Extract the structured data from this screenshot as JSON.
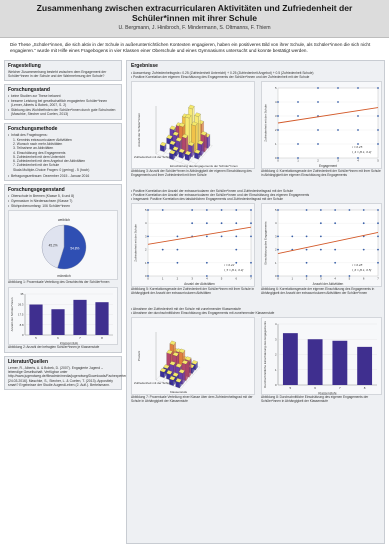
{
  "header": {
    "title": "Zusammenhang zwischen extracurricularen Aktivitäten und Zufriedenheit der Schüler*innen mit ihrer Schule",
    "authors": "U. Bergmann, J. Hinibroch, F. Mindermann, S. Oltmanns, F. Thiem"
  },
  "intro": "Die These „Schüler*innen, die sich aktiv in der Schule in außerunterrichtlichen Kontexten engagieren, haben ein positiveres Bild von ihrer Schule, als Schüler*innen die sich nicht engagieren.“ wurde mit Hilfe eines Fragebogens in vier Klassen einer Oberschule und eines Gymnasiums untersucht und konnte bestätigt werden.",
  "left": {
    "q_title": "Fragestellung",
    "q_text": "Welcher Zusammenhang besteht zwischen dem Engagement der Schüler*innen in der Schule und der Wahrnehmung der Schule?",
    "fs_title": "Forschungsstand",
    "fs_items": [
      "keine Studien zur These bekannt",
      "bessere Leistung bei gesellschaftlich engagierten Schüler*innen (Lerner, Alberts & Bobek, 2007, S. 2)",
      "Stärkung des Wohlbefinden der Schüler*innen durch gute Schulnoten (Maschke, Stecher und Coelen, 2013)"
    ],
    "fm_title": "Forschungsmethode",
    "fm_intro": "Inhalt des Fragebogens:",
    "fm_items": [
      "1. Kenntnis extracurricularer Aktivitäten",
      "2. Wunsch nach mehr Aktivitäten",
      "3. Teilnahme an Aktivitäten",
      "4. Einschätzung des Engagements",
      "5. Zufriedenheit mit dem Unterricht",
      "6. Zufriedenheit mit dem Angebot der Aktivitäten",
      "7. Zufriedenheit mit der Schule"
    ],
    "fm_scale": "Skala Multiple-Choice Fragen: 0 (gering) - 5 (hoch)",
    "fm_time": "Befragungszeitraum: Dezember 2015 - Januar 2016",
    "sg_title": "Forschungsgegenstand",
    "sg_items": [
      "Oberschule in Bremen (Klasse 5, 6 und 8)",
      "Gymnasium in Niedersachsen (Klasse 7)",
      "Stichprobenumfang: 106 Schüler*innen"
    ],
    "cap1": "Abbildung 1: Prozentuale Verteilung des Geschlechts der Schüler*innen",
    "cap2": "Abbildung 2: Anzahl der befragten Schüler*innen je Klassenstufe",
    "lit_title": "Literatur/Quellen",
    "lit_text": "Lerner, R., Alberts, A. & Bobek, D. (2007). Engagierte Jugend – lebendige Gesellschaft. Verfügbar unter http://www.jugendweg.de/fileadmin/media/jugendweg/Downloads/Fachexperten_zu_den_Bereichen_Kita_und_Schule/Experten_Lerner.pdf [24.03.2016]. Maschke, S., Stecher, L. & Coelen, T. (2013). Appositely smart? Ergebnisse der Studie AugendLeben (2. Aufl.). Bertelsmann."
  },
  "pie": {
    "labels": [
      "weiblich",
      "männlich"
    ],
    "values": [
      54.8,
      45.2
    ],
    "colors": [
      "#2f4fb3",
      "#dfe3ef"
    ]
  },
  "bar_small": {
    "categories": [
      "5",
      "6",
      "7",
      "8"
    ],
    "values": [
      26,
      22,
      30,
      28
    ],
    "xlabel": "Klassenstufe",
    "ylabel": "Anzahl der Schüler*innen",
    "color": "#3f2f8f"
  },
  "right": {
    "title": "Ergebnisse",
    "b1": "Auswertung: Zufriedenheitsgrdx= 0.25 (Zufriedenheit Unterricht) + 0.25 (Zufriedenheit Angebot) + 0.5 (Zufriedenheit Schule)",
    "b2": "Positive Korrelation der eigenen Einschätzung des Engagements der Schüler*innen und der Zufriedenheit mit der Schule",
    "cap3": "Abbildung 3: Anzahl der Schüler*innen in Abhängigkeit der eigenen Einschätzung des Engagements und ihrer Zufriedenheit mit ihrer Schule",
    "cap4": "Abbildung 4: Korrelationsgerade der Zufriedenheit der Schüler*innen mit ihrer Schule in Abhängigkeit der eigenen Einschätzung des Engagements",
    "b3": [
      "Positive Korrelation der Anzahl der extracurricularen der Schüler*innen und Zufriedenheitsgrad mit der Schule",
      "Positive Korrelation der Anzahl der extracurricularen der Schüler*innen und der Einschätzung des eigenen Engagements",
      "Insgesamt: Positive Korrelation des tatsächlichen Engagements und Zufriedenheitsgrad mit der Schule"
    ],
    "cap5": "Abbildung 5: Korrelationsgerade der Zufriedenheit der Schüler*innen mit ihrer Schule in Abhängigkeit der Anzahl der extracurricularen Aktivitäten",
    "cap6": "Abbildung 6: Korrelationsgerade der eigenen Einschätzung des Engagements in Abhängigkeit der Anzahl der extracurricularen Aktivitäten der Schüler*innen",
    "b4": [
      "Abnahme der Zufriedenheit mit der Schule mit zunehmender Klassenstufe",
      "Abnahme der durchschnittlichen Einschätzung des Engagements mit zunehmender Klassenstufe"
    ],
    "cap7": "Abbildung 7: Prozentuale Verteilung einer Klasse über dem Zufriedenheitsgrad mit der Schule in Abhängigkeit der Klassenstufe",
    "cap8": "Abbildung 8: Durchschnittliche Einschätzung des eigenen Engagements der Schüler*innen in Abhängigkeit der Klassenstufe"
  },
  "fig3": {
    "xlabel": "Einschätzung des Engagements der Schüler*innen",
    "ylabel": "Zufriedenheit mit der Schule",
    "zlabel": "Anzahl der Schüler*innen"
  },
  "fig4": {
    "xlabel": "Engagement",
    "ylabel": "Zufriedenheit mit der Schule",
    "r": "r = 0.25",
    "t": "t_4 = [0.1, 0.4]"
  },
  "fig5": {
    "xlabel": "Anzahl der Aktivitäten",
    "ylabel": "Zufriedenheit mit der Schule",
    "r": "r = 0.22",
    "t": "t_5 = [0.1, 0.4]"
  },
  "fig6": {
    "xlabel": "Anzahl der Aktivitäten",
    "ylabel": "Einschätzung des Engagements",
    "r": "r = 0.28",
    "t": "t_6 = [0.1, 0.5]"
  },
  "fig7": {
    "xlabel": "Klassenstufe",
    "ylabel": "Zufriedenheit mit der Schule",
    "zlabel": "Prozent"
  },
  "chart_data": [
    {
      "type": "pie",
      "title": "",
      "categories": [
        "weiblich",
        "männlich"
      ],
      "values": [
        54.8,
        45.2
      ]
    },
    {
      "type": "bar",
      "categories": [
        "5",
        "6",
        "7",
        "8"
      ],
      "values": [
        26,
        22,
        30,
        28
      ],
      "xlabel": "Klassenstufe",
      "ylabel": "Anzahl der Schüler*innen",
      "ylim": [
        0,
        35
      ]
    },
    {
      "type": "scatter",
      "xlabel": "Engagement",
      "ylabel": "Zufriedenheit mit der Schule",
      "xlim": [
        0,
        5
      ],
      "ylim": [
        0,
        5
      ],
      "fit_line": {
        "x": [
          0,
          5
        ],
        "y": [
          2.5,
          3.6
        ]
      }
    },
    {
      "type": "scatter",
      "xlabel": "Anzahl der Aktivitäten",
      "ylabel": "Zufriedenheit mit der Schule",
      "xlim": [
        0,
        7
      ],
      "ylim": [
        0,
        5
      ],
      "fit_line": {
        "x": [
          0,
          7
        ],
        "y": [
          2.4,
          3.7
        ]
      }
    },
    {
      "type": "scatter",
      "xlabel": "Anzahl der Aktivitäten",
      "ylabel": "Einschätzung des Engagements",
      "xlim": [
        0,
        7
      ],
      "ylim": [
        0,
        5
      ],
      "fit_line": {
        "x": [
          0,
          7
        ],
        "y": [
          1.7,
          3.3
        ]
      }
    },
    {
      "type": "bar",
      "categories": [
        "5",
        "6",
        "7",
        "8"
      ],
      "values": [
        3.4,
        3.0,
        2.9,
        2.5
      ],
      "xlabel": "Klassenstufe",
      "ylabel": "Durchschnittliche Einschätzung des Engagements",
      "ylim": [
        0,
        4
      ]
    }
  ]
}
